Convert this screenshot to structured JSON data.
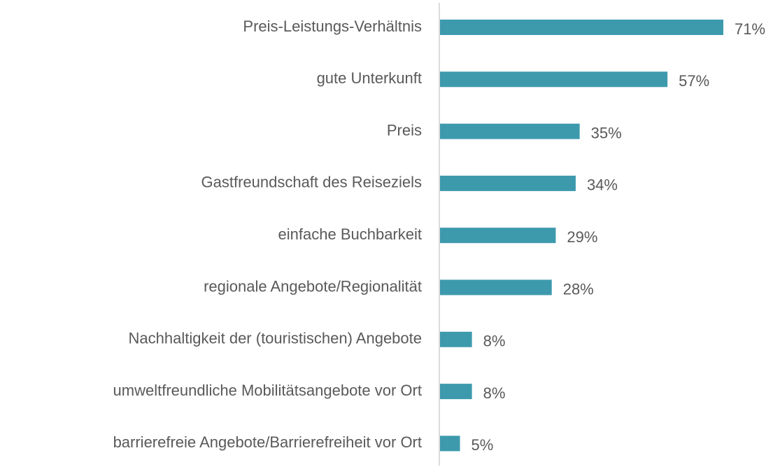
{
  "chart_data": {
    "type": "bar",
    "orientation": "horizontal",
    "categories": [
      "Preis-Leistungs-Verhältnis",
      "gute Unterkunft",
      "Preis",
      "Gastfreundschaft des Reiseziels",
      "einfache Buchbarkeit",
      "regionale Angebote/Regionalität",
      "Nachhaltigkeit der (touristischen) Angebote",
      "umweltfreundliche Mobilitätsangebote vor Ort",
      "barrierefreie Angebote/Barrierefreiheit vor Ort"
    ],
    "values": [
      71,
      57,
      35,
      34,
      29,
      28,
      8,
      8,
      5
    ],
    "value_labels": [
      "71%",
      "57%",
      "35%",
      "34%",
      "29%",
      "28%",
      "8%",
      "8%",
      "5%"
    ],
    "color": "#3d9aad"
  }
}
